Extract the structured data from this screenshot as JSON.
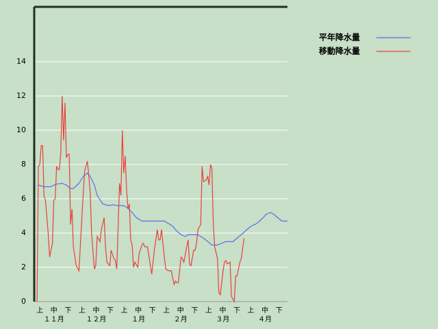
{
  "chart_data": {
    "type": "line",
    "series": [
      {
        "name": "平年降水量",
        "color": "#5a6ee6",
        "x": [
          3,
          7,
          12,
          15,
          20,
          23,
          26,
          28,
          32,
          35,
          38,
          40,
          43,
          45,
          49,
          53,
          56,
          60,
          64,
          67,
          70,
          73,
          77,
          81,
          88,
          93,
          95,
          99,
          102,
          105,
          108,
          110,
          117,
          121,
          125,
          127,
          131,
          134,
          137,
          142,
          145,
          148,
          152,
          155,
          159,
          163,
          166,
          169,
          171,
          174,
          177,
          181
        ],
        "values": [
          6.8,
          6.7,
          6.7,
          6.85,
          6.9,
          6.8,
          6.6,
          6.6,
          6.9,
          7.3,
          7.5,
          7.3,
          6.8,
          6.2,
          5.7,
          5.6,
          5.65,
          5.6,
          5.6,
          5.45,
          5.2,
          4.9,
          4.7,
          4.7,
          4.7,
          4.7,
          4.6,
          4.4,
          4.1,
          3.9,
          3.8,
          3.9,
          3.9,
          3.7,
          3.45,
          3.3,
          3.3,
          3.4,
          3.5,
          3.5,
          3.7,
          3.9,
          4.2,
          4.4,
          4.55,
          4.85,
          5.1,
          5.2,
          5.1,
          4.9,
          4.7,
          4.7
        ]
      },
      {
        "name": "移動降水量",
        "color": "#e8403a",
        "x": [
          2,
          3,
          4,
          5,
          6,
          7,
          8,
          10,
          11,
          13,
          14,
          15,
          16,
          17,
          18,
          19,
          20,
          21,
          22,
          23,
          24,
          25,
          26,
          27,
          28,
          30,
          32,
          34,
          36,
          38,
          40,
          41,
          43,
          44,
          45,
          47,
          48,
          50,
          51,
          52,
          54,
          55,
          57,
          58,
          59,
          61,
          62,
          63,
          64,
          65,
          66,
          67,
          68,
          69,
          70,
          71,
          72,
          74,
          75,
          77,
          78,
          79,
          81,
          83,
          84,
          86,
          88,
          89,
          90,
          91,
          93,
          94,
          96,
          98,
          100,
          101,
          102,
          103,
          105,
          106,
          107,
          109,
          110,
          111,
          112,
          114,
          115,
          116,
          117,
          119,
          120,
          121,
          123,
          124,
          125,
          126,
          127,
          128,
          129,
          131,
          132,
          133,
          135,
          136,
          137,
          138,
          140,
          141,
          143,
          144,
          145,
          147,
          148,
          150
        ],
        "values": [
          0,
          7.9,
          8,
          9.1,
          9.1,
          6.2,
          5.9,
          4,
          2.6,
          3.4,
          5.9,
          6,
          7.9,
          7.7,
          7.7,
          8.7,
          12,
          9.4,
          11.6,
          8.4,
          8.6,
          8.6,
          4.5,
          5.4,
          3.2,
          2.1,
          1.8,
          4.8,
          7.6,
          8.2,
          6.4,
          4,
          1.9,
          2.1,
          3.8,
          3.5,
          4.2,
          4.9,
          3.1,
          2.3,
          2.1,
          3,
          2.5,
          2.4,
          1.9,
          6.9,
          6.2,
          10,
          7.5,
          8.5,
          6.6,
          5.4,
          5.7,
          3.6,
          3.3,
          2,
          2.3,
          2,
          2.8,
          3.3,
          3.4,
          3.2,
          3.2,
          2.1,
          1.6,
          3.1,
          4.2,
          3.6,
          3.6,
          4.2,
          2.6,
          1.9,
          1.8,
          1.8,
          1,
          1.2,
          1.1,
          1.1,
          2.6,
          2.5,
          2.3,
          3.2,
          3.6,
          2.2,
          2.1,
          3,
          3,
          3.4,
          4.2,
          4.5,
          7.9,
          7,
          7.1,
          7.3,
          6.8,
          8,
          7.8,
          4.5,
          3.2,
          2.5,
          0.5,
          0.4,
          1.8,
          2.3,
          2.4,
          2.2,
          2.3,
          0.3,
          0,
          1.5,
          1.5,
          2.3,
          2.5,
          3.7
        ]
      }
    ],
    "xlim": [
      0,
      181
    ],
    "ylim": [
      0,
      17.2
    ],
    "yticks": [
      0,
      2,
      4,
      6,
      8,
      10,
      12,
      14
    ],
    "grid": true,
    "dekads": [
      "上",
      "中",
      "下",
      "上",
      "中",
      "下",
      "上",
      "中",
      "下",
      "上",
      "中",
      "下",
      "上",
      "中",
      "下",
      "上",
      "中",
      "下"
    ],
    "months": [
      "１１月",
      "１２月",
      "１月",
      "２月",
      "３月",
      "４月"
    ],
    "legend": "right"
  }
}
